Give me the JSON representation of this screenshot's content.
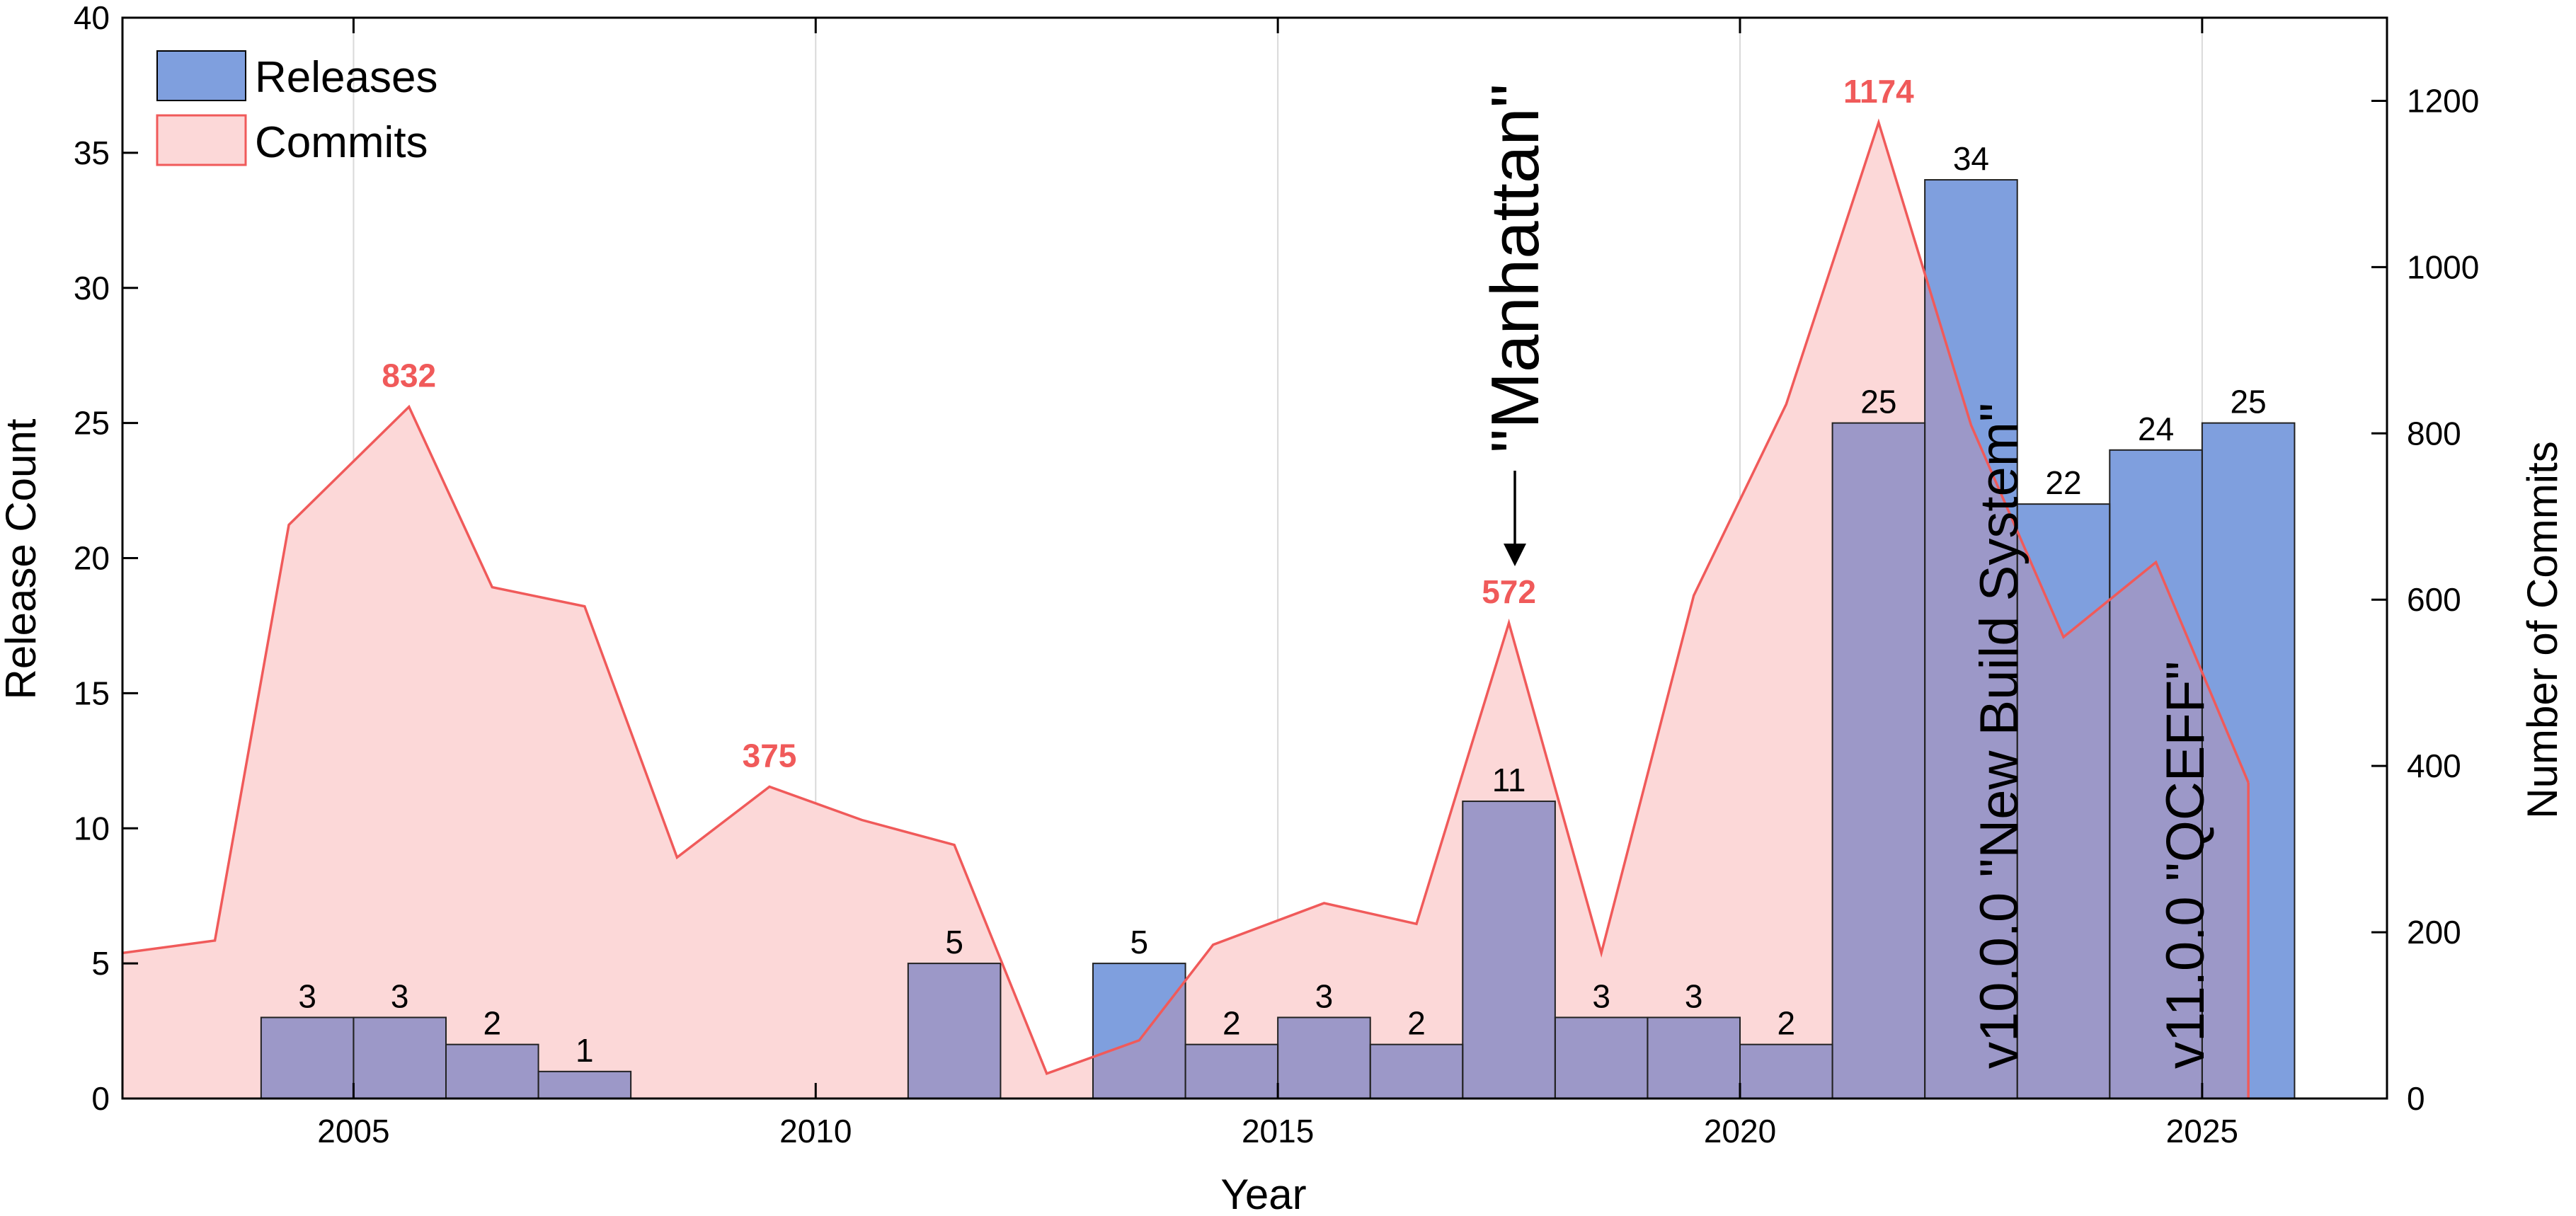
{
  "chart_data": {
    "type": "bar",
    "xlabel": "Year",
    "ylabel_left": "Release Count",
    "ylabel_right": "Number of Commits",
    "xlim": [
      2002.5,
      2027
    ],
    "ylim_left": [
      0,
      40
    ],
    "ylim_right": [
      0,
      1300
    ],
    "xticks": [
      2005,
      2010,
      2015,
      2020,
      2025
    ],
    "yticks_left": [
      0,
      5,
      10,
      15,
      20,
      25,
      30,
      35,
      40
    ],
    "yticks_right": [
      0,
      200,
      400,
      600,
      800,
      1000,
      1200
    ],
    "grid": "vertical",
    "legend_position": "top-left",
    "series": [
      {
        "name": "Releases",
        "kind": "bar",
        "color": "#7f9fde",
        "x": [
          2004.5,
          2005.5,
          2006.5,
          2007.5,
          2011.5,
          2013.5,
          2014.5,
          2015.5,
          2016.5,
          2017.5,
          2018.5,
          2019.5,
          2020.5,
          2021.5,
          2022.5,
          2023.5,
          2024.5,
          2025.5
        ],
        "values": [
          3,
          3,
          2,
          1,
          5,
          5,
          2,
          3,
          2,
          11,
          3,
          3,
          2,
          25,
          34,
          22,
          24,
          25
        ],
        "labels": [
          "3",
          "3",
          "2",
          "1",
          "5",
          "5",
          "2",
          "3",
          "2",
          "11",
          "3",
          "3",
          "2",
          "25",
          "34",
          "22",
          "24",
          "25"
        ]
      },
      {
        "name": "Commits",
        "kind": "area",
        "color": "#f05a5a",
        "fill": "#fcd8d8",
        "x": [
          2002.5,
          2003.5,
          2004.3,
          2005.6,
          2006.5,
          2007.5,
          2008.5,
          2009.5,
          2010.5,
          2011.5,
          2012.5,
          2013.5,
          2014.3,
          2015.5,
          2016.5,
          2017.5,
          2018.5,
          2019.5,
          2020.5,
          2021.5,
          2022.5,
          2023.5,
          2024.5,
          2025.5
        ],
        "values": [
          175,
          190,
          690,
          832,
          615,
          592,
          290,
          375,
          335,
          305,
          30,
          70,
          185,
          235,
          210,
          572,
          175,
          605,
          835,
          1174,
          810,
          555,
          645,
          380
        ]
      }
    ],
    "peak_labels": [
      {
        "x": 2005.6,
        "value": 832,
        "text": "832"
      },
      {
        "x": 2009.5,
        "value": 375,
        "text": "375"
      },
      {
        "x": 2017.5,
        "value": 572,
        "text": "572"
      },
      {
        "x": 2021.5,
        "value": 1174,
        "text": "1174"
      }
    ],
    "annotations": [
      {
        "text": "\"Manhattan\"",
        "x": 2017.5
      },
      {
        "text": "v10.0.0 \"New Build System\"",
        "x": 2022.5
      },
      {
        "text": "v11.0.0 \"QCEFF\"",
        "x": 2024.5
      }
    ],
    "colors": {
      "bar_fill": "#7f9fde",
      "overlap_fill": "#9c98c8",
      "line": "#f05a5a",
      "area_fill": "#fcd8d8"
    }
  }
}
